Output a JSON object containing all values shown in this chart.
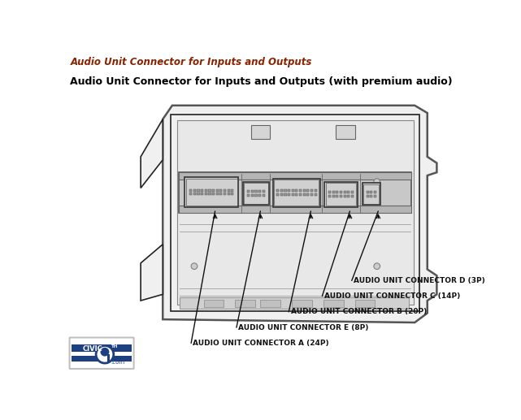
{
  "title_top": "Audio Unit Connector for Inputs and Outputs",
  "title_top_color": "#8B2200",
  "title_sub": "Audio Unit Connector for Inputs and Outputs (with premium audio)",
  "title_sub_color": "#000000",
  "bg_color": "#ffffff",
  "fig_width": 6.41,
  "fig_height": 5.17,
  "dpi": 100,
  "connector_labels": [
    "AUDIO UNIT CONNECTOR D (3P)",
    "AUDIO UNIT CONNECTOR C (14P)",
    "AUDIO UNIT CONNECTOR B (20P)",
    "AUDIO UNIT CONNECTOR E (8P)",
    "AUDIO UNIT CONNECTOR A (24P)"
  ],
  "line_color": "#222222",
  "body_outline_color": "#555555",
  "body_fill": "#f0f0f0",
  "inner_dark": "#333333",
  "inner_fill": "#e8e8e8",
  "board_fill": "#d8d8d8",
  "connector_fill": "#cccccc",
  "logo_blue": "#1e4080",
  "logo_light_blue": "#5080c0"
}
